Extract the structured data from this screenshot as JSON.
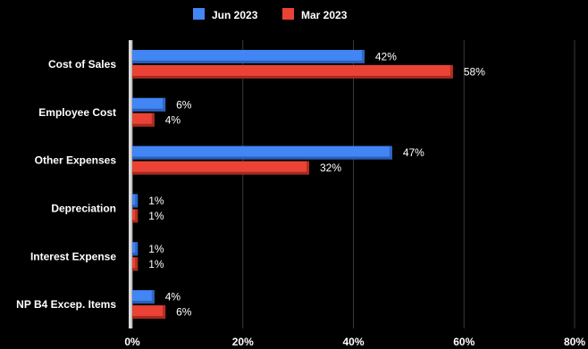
{
  "chart_data": {
    "type": "bar",
    "orientation": "horizontal",
    "categories": [
      "Cost of Sales",
      "Employee Cost",
      "Other Expenses",
      "Depreciation",
      "Interest Expense",
      "NP B4 Excep. Items"
    ],
    "series": [
      {
        "name": "Jun 2023",
        "color": "#4285f4",
        "values": [
          42,
          6,
          47,
          1,
          1,
          4
        ],
        "labels": [
          "42%",
          "6%",
          "47%",
          "1%",
          "1%",
          "4%"
        ]
      },
      {
        "name": "Mar 2023",
        "color": "#ea4335",
        "values": [
          58,
          4,
          32,
          1,
          1,
          6
        ],
        "labels": [
          "58%",
          "4%",
          "32%",
          "1%",
          "1%",
          "6%"
        ]
      }
    ],
    "xlim": [
      0,
      80
    ],
    "xticks": [
      0,
      20,
      40,
      60,
      80
    ],
    "xtick_labels": [
      "0%",
      "20%",
      "40%",
      "60%",
      "80%"
    ],
    "grid": true,
    "legend_position": "top-center",
    "background": "#000000"
  }
}
